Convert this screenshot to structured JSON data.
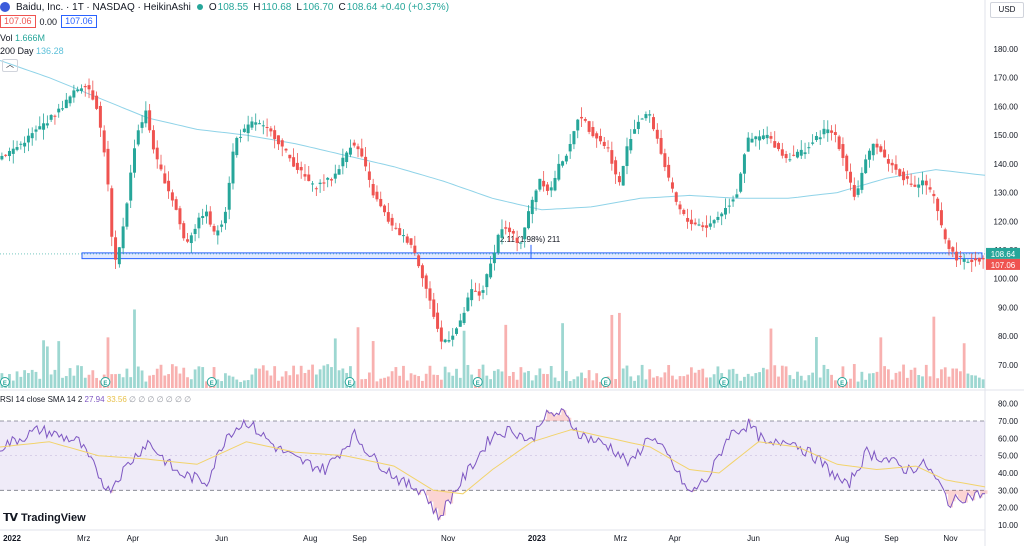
{
  "header": {
    "title": "Baidu, Inc. · 1T · NASDAQ · HeikinAshi",
    "ohlc": [
      {
        "k": "O",
        "v": "108.55"
      },
      {
        "k": "H",
        "v": "110.68"
      },
      {
        "k": "L",
        "v": "106.70"
      },
      {
        "k": "C",
        "v": "108.64 +0.40 (+0.37%)"
      }
    ],
    "sell": "107.06",
    "spread": "0.00",
    "buy": "107.06",
    "vol_label": "Vol",
    "vol_value": "1.666M",
    "ma_label": "200 Day",
    "ma_value": "136.28",
    "currency": "USD",
    "collapse_icon": "chevron-up-icon"
  },
  "rsi_header": {
    "label": "RSI 14 close SMA 14 2",
    "rsi_value": "27.94",
    "sma_value": "33.56",
    "extra": "∅ ∅ ∅ ∅ ∅ ∅ ∅"
  },
  "branding": {
    "name": "TradingView"
  },
  "annotation": {
    "text": "2.11 (1.98%) 211"
  },
  "chart_data": {
    "type": "candlestick",
    "price_axis": {
      "range": [
        63,
        188
      ],
      "ticks": [
        "180.00",
        "170.00",
        "160.00",
        "150.00",
        "140.00",
        "130.00",
        "120.00",
        "110.00",
        "100.00",
        "90.00",
        "80.00",
        "70.00"
      ],
      "tick_values": [
        180,
        170,
        160,
        150,
        140,
        130,
        120,
        110,
        100,
        90,
        80,
        70
      ]
    },
    "time_axis": {
      "labels": [
        "2022",
        "Mrz",
        "Apr",
        "Jun",
        "Aug",
        "Sep",
        "Nov",
        "2023",
        "Mrz",
        "Apr",
        "Jun",
        "Aug",
        "Sep",
        "Nov"
      ],
      "positions": [
        0,
        0.085,
        0.135,
        0.225,
        0.315,
        0.365,
        0.455,
        0.545,
        0.63,
        0.685,
        0.765,
        0.855,
        0.905,
        0.965
      ]
    },
    "price_anchors": [
      [
        0.0,
        142
      ],
      [
        0.02,
        146
      ],
      [
        0.04,
        152
      ],
      [
        0.06,
        158
      ],
      [
        0.08,
        166
      ],
      [
        0.09,
        168
      ],
      [
        0.1,
        160
      ],
      [
        0.11,
        140
      ],
      [
        0.115,
        115
      ],
      [
        0.12,
        104
      ],
      [
        0.13,
        125
      ],
      [
        0.14,
        150
      ],
      [
        0.15,
        158
      ],
      [
        0.16,
        142
      ],
      [
        0.18,
        125
      ],
      [
        0.19,
        112
      ],
      [
        0.21,
        124
      ],
      [
        0.22,
        115
      ],
      [
        0.23,
        122
      ],
      [
        0.24,
        148
      ],
      [
        0.26,
        155
      ],
      [
        0.28,
        150
      ],
      [
        0.3,
        140
      ],
      [
        0.32,
        132
      ],
      [
        0.34,
        135
      ],
      [
        0.36,
        148
      ],
      [
        0.37,
        142
      ],
      [
        0.38,
        130
      ],
      [
        0.4,
        118
      ],
      [
        0.42,
        112
      ],
      [
        0.43,
        102
      ],
      [
        0.44,
        90
      ],
      [
        0.45,
        78
      ],
      [
        0.46,
        80
      ],
      [
        0.47,
        85
      ],
      [
        0.48,
        96
      ],
      [
        0.49,
        94
      ],
      [
        0.5,
        105
      ],
      [
        0.51,
        118
      ],
      [
        0.52,
        116
      ],
      [
        0.53,
        112
      ],
      [
        0.54,
        125
      ],
      [
        0.55,
        135
      ],
      [
        0.56,
        130
      ],
      [
        0.57,
        140
      ],
      [
        0.58,
        145
      ],
      [
        0.59,
        158
      ],
      [
        0.6,
        152
      ],
      [
        0.62,
        145
      ],
      [
        0.63,
        132
      ],
      [
        0.64,
        148
      ],
      [
        0.65,
        155
      ],
      [
        0.66,
        158
      ],
      [
        0.67,
        148
      ],
      [
        0.68,
        135
      ],
      [
        0.69,
        125
      ],
      [
        0.7,
        120
      ],
      [
        0.72,
        118
      ],
      [
        0.74,
        125
      ],
      [
        0.75,
        130
      ],
      [
        0.76,
        148
      ],
      [
        0.78,
        150
      ],
      [
        0.8,
        142
      ],
      [
        0.82,
        145
      ],
      [
        0.84,
        152
      ],
      [
        0.85,
        150
      ],
      [
        0.86,
        140
      ],
      [
        0.87,
        128
      ],
      [
        0.88,
        140
      ],
      [
        0.89,
        148
      ],
      [
        0.9,
        142
      ],
      [
        0.92,
        135
      ],
      [
        0.93,
        132
      ],
      [
        0.94,
        134
      ],
      [
        0.95,
        128
      ],
      [
        0.96,
        115
      ],
      [
        0.97,
        108
      ],
      [
        0.98,
        106
      ],
      [
        1.0,
        107
      ]
    ],
    "ma_anchors": [
      [
        0.0,
        176
      ],
      [
        0.05,
        170
      ],
      [
        0.1,
        163
      ],
      [
        0.15,
        156
      ],
      [
        0.2,
        152
      ],
      [
        0.25,
        150
      ],
      [
        0.3,
        147
      ],
      [
        0.35,
        143
      ],
      [
        0.4,
        139
      ],
      [
        0.45,
        134
      ],
      [
        0.5,
        128
      ],
      [
        0.55,
        124
      ],
      [
        0.6,
        125
      ],
      [
        0.65,
        128
      ],
      [
        0.7,
        129
      ],
      [
        0.75,
        128
      ],
      [
        0.8,
        128
      ],
      [
        0.85,
        130
      ],
      [
        0.9,
        135
      ],
      [
        0.95,
        138
      ],
      [
        1.0,
        136
      ]
    ],
    "support_zone": [
      107,
      109
    ],
    "last_price": "108.64",
    "prev_close": "107.06",
    "rsi": {
      "range": [
        10,
        85
      ],
      "ticks": [
        "80.00",
        "70.00",
        "60.00",
        "50.00",
        "40.00",
        "30.00",
        "20.00",
        "10.00"
      ],
      "tick_values": [
        80,
        70,
        60,
        50,
        40,
        30,
        20,
        10
      ],
      "overbought": 70,
      "oversold": 30,
      "anchors": [
        [
          0.0,
          55
        ],
        [
          0.04,
          65
        ],
        [
          0.08,
          58
        ],
        [
          0.11,
          30
        ],
        [
          0.13,
          45
        ],
        [
          0.15,
          58
        ],
        [
          0.18,
          40
        ],
        [
          0.21,
          35
        ],
        [
          0.23,
          62
        ],
        [
          0.25,
          70
        ],
        [
          0.28,
          55
        ],
        [
          0.3,
          48
        ],
        [
          0.33,
          42
        ],
        [
          0.36,
          62
        ],
        [
          0.38,
          48
        ],
        [
          0.41,
          34
        ],
        [
          0.43,
          30
        ],
        [
          0.445,
          14
        ],
        [
          0.46,
          28
        ],
        [
          0.48,
          45
        ],
        [
          0.5,
          62
        ],
        [
          0.52,
          65
        ],
        [
          0.54,
          58
        ],
        [
          0.55,
          72
        ],
        [
          0.57,
          75
        ],
        [
          0.59,
          62
        ],
        [
          0.62,
          55
        ],
        [
          0.64,
          45
        ],
        [
          0.66,
          62
        ],
        [
          0.68,
          48
        ],
        [
          0.7,
          28
        ],
        [
          0.72,
          38
        ],
        [
          0.74,
          62
        ],
        [
          0.76,
          68
        ],
        [
          0.78,
          55
        ],
        [
          0.8,
          60
        ],
        [
          0.83,
          48
        ],
        [
          0.86,
          32
        ],
        [
          0.88,
          52
        ],
        [
          0.9,
          48
        ],
        [
          0.92,
          42
        ],
        [
          0.94,
          45
        ],
        [
          0.955,
          32
        ],
        [
          0.965,
          22
        ],
        [
          0.975,
          26
        ],
        [
          1.0,
          28
        ]
      ],
      "sma_anchors": [
        [
          0.0,
          55
        ],
        [
          0.05,
          58
        ],
        [
          0.1,
          50
        ],
        [
          0.15,
          48
        ],
        [
          0.2,
          45
        ],
        [
          0.25,
          58
        ],
        [
          0.3,
          52
        ],
        [
          0.35,
          50
        ],
        [
          0.4,
          44
        ],
        [
          0.44,
          30
        ],
        [
          0.47,
          28
        ],
        [
          0.5,
          42
        ],
        [
          0.54,
          58
        ],
        [
          0.58,
          65
        ],
        [
          0.62,
          60
        ],
        [
          0.66,
          55
        ],
        [
          0.7,
          42
        ],
        [
          0.73,
          40
        ],
        [
          0.77,
          58
        ],
        [
          0.81,
          55
        ],
        [
          0.85,
          45
        ],
        [
          0.89,
          42
        ],
        [
          0.93,
          44
        ],
        [
          0.96,
          36
        ],
        [
          1.0,
          32
        ]
      ]
    },
    "earnings_marker": "E",
    "earnings_positions": [
      0.107,
      0.215,
      0.355,
      0.485,
      0.615,
      0.735,
      0.855,
      0.005
    ]
  }
}
